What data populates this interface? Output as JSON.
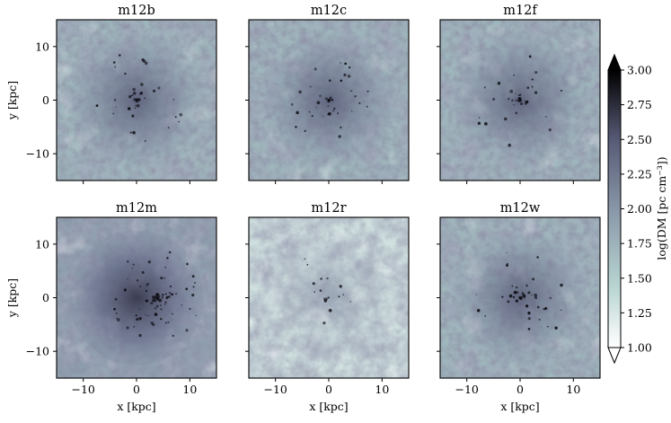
{
  "chart_data": [
    {
      "type": "heatmap",
      "title": "m12b",
      "xlabel": "",
      "ylabel": "y [kpc]",
      "xlim": [
        -15,
        15
      ],
      "ylim": [
        -15,
        15
      ],
      "xticks": [],
      "yticks": [
        10,
        0,
        -10
      ],
      "density": "medium"
    },
    {
      "type": "heatmap",
      "title": "m12c",
      "xlabel": "",
      "ylabel": "",
      "xlim": [
        -15,
        15
      ],
      "ylim": [
        -15,
        15
      ],
      "xticks": [],
      "yticks": [],
      "density": "medium"
    },
    {
      "type": "heatmap",
      "title": "m12f",
      "xlabel": "",
      "ylabel": "",
      "xlim": [
        -15,
        15
      ],
      "ylim": [
        -15,
        15
      ],
      "xticks": [],
      "yticks": [],
      "density": "medium"
    },
    {
      "type": "heatmap",
      "title": "m12m",
      "xlabel": "x [kpc]",
      "ylabel": "y [kpc]",
      "xlim": [
        -15,
        15
      ],
      "ylim": [
        -15,
        15
      ],
      "xticks": [
        -10,
        0,
        10
      ],
      "yticks": [
        10,
        0,
        -10
      ],
      "density": "high"
    },
    {
      "type": "heatmap",
      "title": "m12r",
      "xlabel": "x [kpc]",
      "ylabel": "",
      "xlim": [
        -15,
        15
      ],
      "ylim": [
        -15,
        15
      ],
      "xticks": [
        -10,
        0,
        10
      ],
      "yticks": [],
      "density": "low"
    },
    {
      "type": "heatmap",
      "title": "m12w",
      "xlabel": "x [kpc]",
      "ylabel": "",
      "xlim": [
        -15,
        15
      ],
      "ylim": [
        -15,
        15
      ],
      "xticks": [
        -10,
        0,
        10
      ],
      "yticks": [],
      "density": "medium"
    }
  ],
  "colorbar": {
    "label": "log(DM [pc cm⁻³])",
    "range": [
      1.0,
      3.0
    ],
    "ticks": [
      "1.00",
      "1.25",
      "1.50",
      "1.75",
      "2.00",
      "2.25",
      "2.50",
      "2.75",
      "3.00"
    ],
    "extend": "both",
    "colors": [
      "#ffffff",
      "#b8d4d1",
      "#8c9bab",
      "#575a75",
      "#000000"
    ]
  }
}
